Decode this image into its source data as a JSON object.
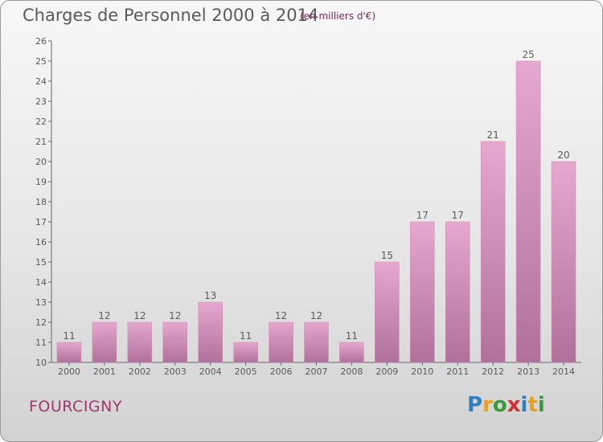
{
  "chart_data": {
    "type": "bar",
    "title": "Charges de Personnel 2000 à 2014",
    "subtitle": "(en milliers d'€)",
    "categories": [
      "2000",
      "2001",
      "2002",
      "2003",
      "2004",
      "2005",
      "2006",
      "2007",
      "2008",
      "2009",
      "2010",
      "2011",
      "2012",
      "2013",
      "2014"
    ],
    "values": [
      11,
      12,
      12,
      12,
      13,
      11,
      12,
      12,
      11,
      15,
      17,
      17,
      21,
      25,
      20
    ],
    "ylim": [
      10,
      26
    ],
    "yticks": [
      10,
      11,
      12,
      13,
      14,
      15,
      16,
      17,
      18,
      19,
      20,
      21,
      22,
      23,
      24,
      25,
      26
    ],
    "grid": false,
    "colors": {
      "bar_top": "#e6a8cf",
      "bar_bottom": "#b0709a",
      "text": "#5a5a5a"
    }
  },
  "commune": "FOURCIGNY",
  "logo": {
    "letters": [
      "P",
      "r",
      "o",
      "x",
      "i",
      "t",
      "i"
    ],
    "colors": [
      "#2f7fc0",
      "#e8a020",
      "#3a9a3a",
      "#d03030",
      "#2f7fc0",
      "#e8a020",
      "#3a9a3a"
    ]
  }
}
